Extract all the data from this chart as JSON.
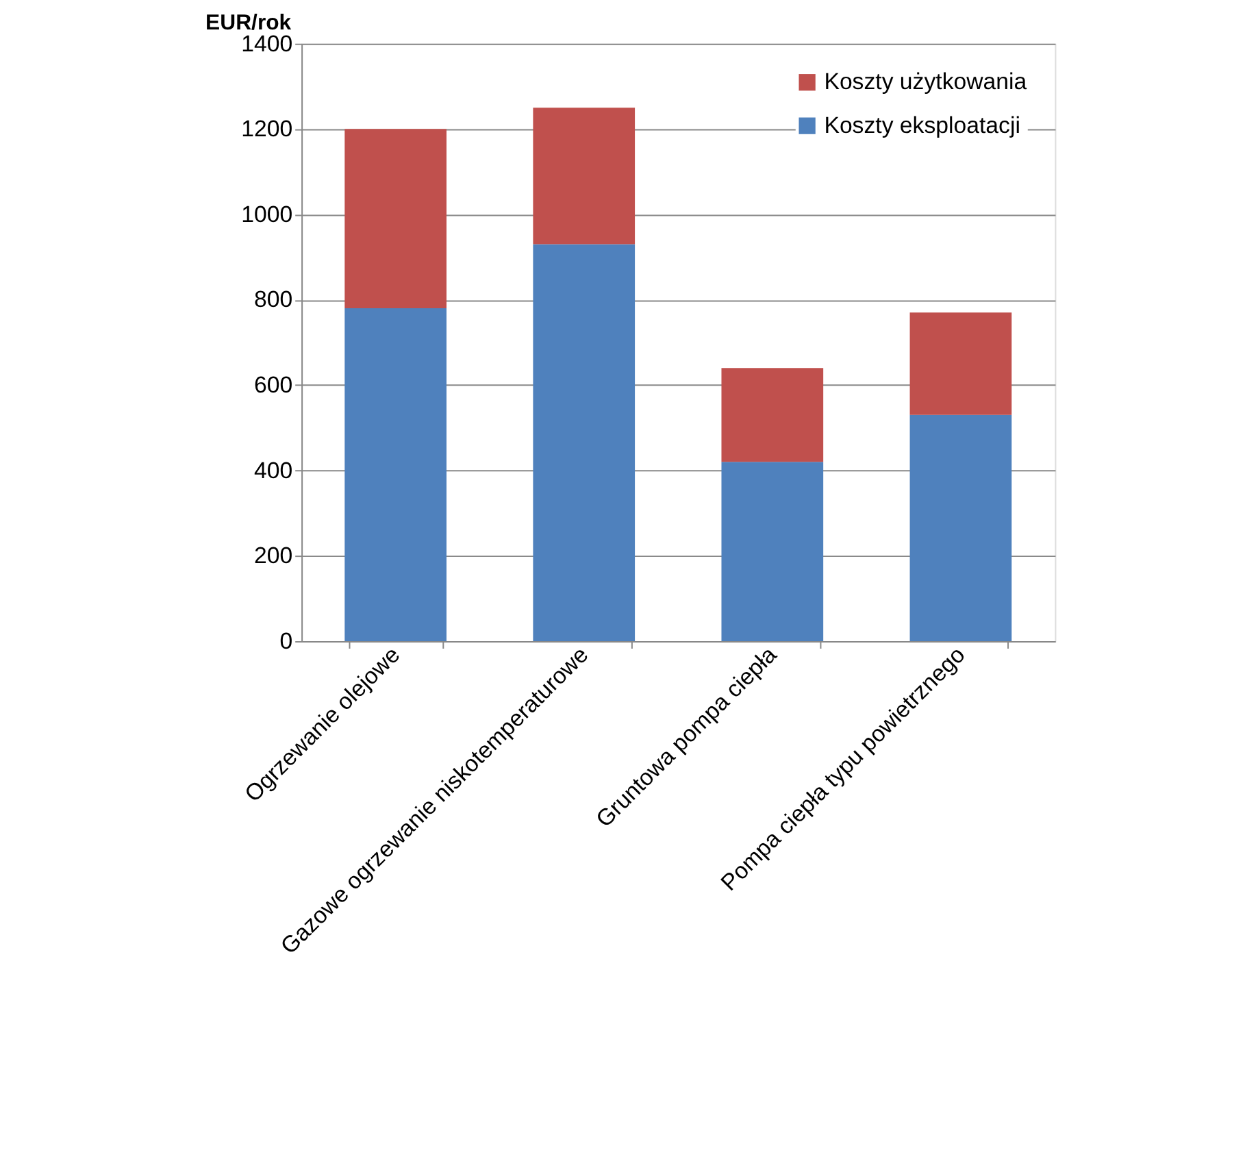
{
  "chart_data": {
    "type": "bar",
    "stacked": true,
    "ylabel": "EUR/rok",
    "categories": [
      "Ogrzewanie olejowe",
      "Gazowe ogrzewanie niskotemperaturowe",
      "Gruntowa pompa ciepła",
      "Pompa ciepła typu powietrznego"
    ],
    "series": [
      {
        "name": "Koszty eksploatacji",
        "color": "#4f81bd",
        "values": [
          780,
          930,
          420,
          530
        ]
      },
      {
        "name": "Koszty użytkowania",
        "color": "#c0504d",
        "values": [
          420,
          320,
          220,
          240
        ]
      }
    ],
    "ylim": [
      0,
      1400
    ],
    "yticks": [
      0,
      200,
      400,
      600,
      800,
      1000,
      1200,
      1400
    ],
    "grid": "y",
    "legend": "top right"
  }
}
